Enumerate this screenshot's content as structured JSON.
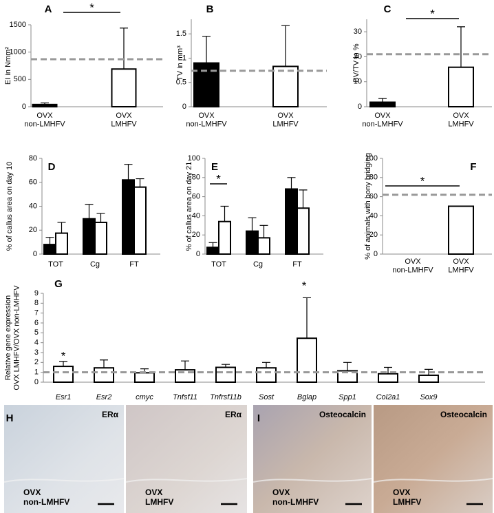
{
  "chart_data": [
    {
      "type": "bar",
      "panel": "A",
      "ylabel": "EI in Nmm²",
      "categories": [
        "OVX\nnon-LMHFV",
        "OVX\nLMHFV"
      ],
      "values": [
        40,
        690
      ],
      "errors": [
        30,
        750
      ],
      "colors": [
        "#000000",
        "#ffffff"
      ],
      "ylim": [
        0,
        1500
      ],
      "yticks": [
        0,
        500,
        1000,
        1500
      ],
      "reference_line": 870,
      "annotations": [
        "*"
      ]
    },
    {
      "type": "bar",
      "panel": "B",
      "ylabel": "TV in mm³",
      "categories": [
        "OVX\nnon-LMHFV",
        "OVX\nLMHFV"
      ],
      "values": [
        0.9,
        0.83
      ],
      "errors": [
        0.55,
        0.84
      ],
      "colors": [
        "#000000",
        "#ffffff"
      ],
      "ylim": [
        0,
        1.8
      ],
      "yticks": [
        0,
        0.5,
        1,
        1.5
      ],
      "reference_line": 0.74,
      "annotations": []
    },
    {
      "type": "bar",
      "panel": "C",
      "ylabel": "BV/TV in %",
      "categories": [
        "OVX\nnon-LMHFV",
        "OVX\nLMHFV"
      ],
      "values": [
        1.8,
        15.8
      ],
      "errors": [
        1.5,
        16.2
      ],
      "colors": [
        "#000000",
        "#ffffff"
      ],
      "ylim": [
        0,
        35
      ],
      "yticks": [
        0,
        10,
        20,
        30
      ],
      "reference_line": 21,
      "annotations": [
        "*"
      ]
    },
    {
      "type": "grouped_bar",
      "panel": "D",
      "ylabel": "% of callus area on day 10",
      "categories": [
        "TOT",
        "Cg",
        "FT"
      ],
      "series": [
        {
          "color": "#000000",
          "values": [
            8,
            29.5,
            62
          ],
          "errors": [
            6,
            12,
            13
          ]
        },
        {
          "color": "#ffffff",
          "values": [
            17.5,
            26.5,
            56
          ],
          "errors": [
            9,
            7.5,
            7
          ]
        }
      ],
      "ylim": [
        0,
        80
      ],
      "yticks": [
        0,
        20,
        40,
        60,
        80
      ],
      "annotations": []
    },
    {
      "type": "grouped_bar",
      "panel": "E",
      "ylabel": "% of callus area on day 21",
      "categories": [
        "TOT",
        "Cg",
        "FT"
      ],
      "series": [
        {
          "color": "#000000",
          "values": [
            7,
            24,
            68
          ],
          "errors": [
            5,
            14,
            12
          ]
        },
        {
          "color": "#ffffff",
          "values": [
            34,
            17,
            48
          ],
          "errors": [
            16,
            13,
            19
          ]
        }
      ],
      "ylim": [
        0,
        100
      ],
      "yticks": [
        0,
        20,
        40,
        60,
        80,
        100
      ],
      "annotations": [
        "*"
      ]
    },
    {
      "type": "bar",
      "panel": "F",
      "ylabel": "% of animals with bony bridging",
      "categories": [
        "OVX\nnon-LMHFV",
        "OVX\nLMHFV"
      ],
      "values": [
        0,
        50
      ],
      "colors": [
        "#000000",
        "#ffffff"
      ],
      "ylim": [
        0,
        100
      ],
      "yticks": [
        0,
        20,
        40,
        60,
        80,
        100
      ],
      "reference_line": 62,
      "annotations": [
        "*"
      ]
    },
    {
      "type": "bar",
      "panel": "G",
      "ylabel": "Relative gene expression\nOVX LMHFV/OVX non-LMHFV",
      "categories": [
        "Esr1",
        "Esr2",
        "cmyc",
        "Tnfsf11",
        "Tnfrsf11b",
        "Sost",
        "Bglap",
        "Spp1",
        "Col2a1",
        "Sox9"
      ],
      "values": [
        1.6,
        1.45,
        0.95,
        1.25,
        1.5,
        1.45,
        4.45,
        1.15,
        0.85,
        0.7
      ],
      "errors": [
        0.5,
        0.8,
        0.4,
        0.9,
        0.3,
        0.55,
        4.1,
        0.85,
        0.65,
        0.6
      ],
      "color": "#ffffff",
      "ylim": [
        0,
        9
      ],
      "yticks": [
        0,
        1,
        2,
        3,
        4,
        5,
        6,
        7,
        8,
        9
      ],
      "reference_line": 1,
      "annotations": [
        "*",
        "*"
      ]
    }
  ],
  "image_panels": [
    {
      "panel": "H",
      "images": [
        {
          "stain": "ERα",
          "label": "OVX\nnon-LMHFV"
        },
        {
          "stain": "ERα",
          "label": "OVX\nLMHFV"
        }
      ]
    },
    {
      "panel": "I",
      "images": [
        {
          "stain": "Osteocalcin",
          "label": "OVX\nnon-LMHFV"
        },
        {
          "stain": "Osteocalcin",
          "label": "OVX\nLMHFV"
        }
      ]
    }
  ]
}
